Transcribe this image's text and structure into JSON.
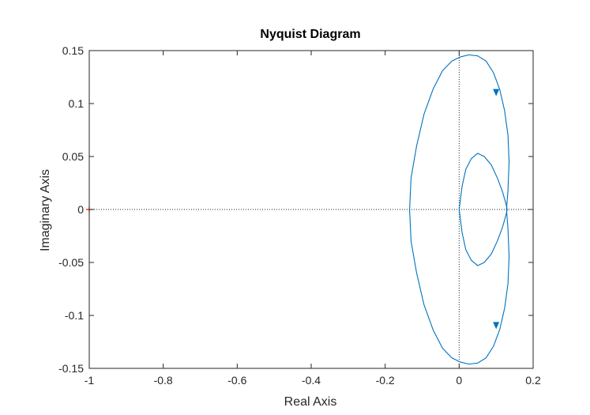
{
  "chart_data": {
    "type": "line",
    "title": "Nyquist Diagram",
    "xlabel": "Real Axis",
    "ylabel": "Imaginary Axis",
    "xlim": [
      -1,
      0.2
    ],
    "ylim": [
      -0.15,
      0.15
    ],
    "x_ticks": [
      -1,
      -0.8,
      -0.6,
      -0.4,
      -0.2,
      0,
      0.2
    ],
    "x_tick_labels": [
      "-1",
      "-0.8",
      "-0.6",
      "-0.4",
      "-0.2",
      "0",
      "0.2"
    ],
    "y_ticks": [
      -0.15,
      -0.1,
      -0.05,
      0,
      0.05,
      0.1,
      0.15
    ],
    "y_tick_labels": [
      "-0.15",
      "-0.1",
      "-0.05",
      "0",
      "0.05",
      "0.1",
      "0.15"
    ],
    "grid": false,
    "zero_lines": "dotted",
    "critical_point": {
      "x": -1,
      "y": 0,
      "marker": "+",
      "color": "#ff0000"
    },
    "series": [
      {
        "color": "#0072bd",
        "x": [
          0,
          0.008,
          0.018,
          0.033,
          0.05,
          0.068,
          0.087,
          0.103,
          0.117,
          0.126,
          0.13,
          0.13,
          0.126,
          0.117,
          0.103,
          0.087,
          0.068,
          0.05,
          0.033,
          0.018,
          0.008,
          0
        ],
        "y": [
          0,
          0.022,
          0.038,
          0.048,
          0.053,
          0.05,
          0.042,
          0.03,
          0.017,
          0.006,
          0,
          0,
          -0.006,
          -0.017,
          -0.03,
          -0.042,
          -0.05,
          -0.053,
          -0.048,
          -0.038,
          -0.022,
          0
        ]
      },
      {
        "color": "#0072bd",
        "x": [
          0.128,
          0.132,
          0.135,
          0.132,
          0.123,
          0.11,
          0.093,
          0.073,
          0.05,
          0.026,
          0.003,
          -0.02,
          -0.045,
          -0.07,
          -0.095,
          -0.115,
          -0.13,
          -0.134,
          -0.13,
          -0.115,
          -0.095,
          -0.07,
          -0.045,
          -0.02,
          0.003,
          0.026,
          0.05,
          0.073,
          0.093,
          0.11,
          0.123,
          0.132,
          0.135,
          0.132,
          0.128
        ],
        "y": [
          0,
          0.018,
          0.045,
          0.07,
          0.093,
          0.113,
          0.129,
          0.14,
          0.145,
          0.146,
          0.144,
          0.14,
          0.131,
          0.114,
          0.09,
          0.06,
          0.03,
          0,
          -0.03,
          -0.06,
          -0.09,
          -0.114,
          -0.131,
          -0.14,
          -0.144,
          -0.146,
          -0.145,
          -0.14,
          -0.129,
          -0.113,
          -0.093,
          -0.07,
          -0.045,
          -0.018,
          0
        ]
      }
    ],
    "arrows": [
      {
        "x": 0.1,
        "y": 0.11,
        "direction": "down"
      },
      {
        "x": 0.1,
        "y": -0.11,
        "direction": "down"
      }
    ]
  }
}
